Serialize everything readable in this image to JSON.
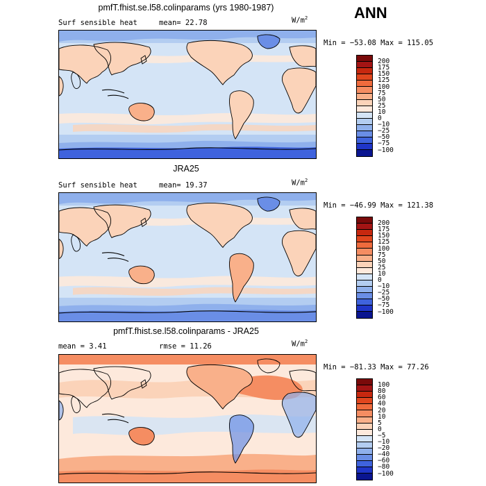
{
  "season": "ANN",
  "colors": {
    "land_outline": "#000000",
    "ocean_base": "#d2e5f6"
  },
  "panels": [
    {
      "title": "pmfT.fhist.se.l58.colinparams (yrs 1980-1987)",
      "variable": "Surf sensible heat",
      "stat_left": "mean=  22.78",
      "stat_right": "",
      "units": "W/m",
      "units_sup": "2",
      "minmax": "Min = −53.08 Max = 115.05"
    },
    {
      "title": "JRA25",
      "variable": "Surf sensible heat",
      "stat_left": "mean=  19.37",
      "stat_right": "",
      "units": "W/m",
      "units_sup": "2",
      "minmax": "Min = −46.99 Max = 121.38"
    },
    {
      "title": "pmfT.fhist.se.l58.colinparams - JRA25",
      "variable": "",
      "stat_left": "mean =   3.41",
      "stat_right": "rmse =  11.26",
      "units": "W/m",
      "units_sup": "2",
      "minmax": "Min = −81.33 Max =  77.26"
    }
  ],
  "chart_data": [
    {
      "type": "heatmap",
      "title": "pmfT.fhist.se.l58.colinparams (yrs 1980-1987)",
      "variable": "Surf sensible heat",
      "units": "W/m2",
      "mean": 22.78,
      "min": -53.08,
      "max": 115.05,
      "colorbar_levels": [
        200,
        175,
        150,
        125,
        100,
        75,
        50,
        25,
        10,
        0,
        -10,
        -25,
        -50,
        -75,
        -100
      ],
      "colorbar_colors": [
        "#7a0a0a",
        "#a31414",
        "#c7280f",
        "#e0461e",
        "#ef6b3d",
        "#f58d62",
        "#f9b08a",
        "#fbd3b9",
        "#fde9dc",
        "#d4e4f6",
        "#b3cdf1",
        "#8fb0ec",
        "#6a8ee6",
        "#3f63dd",
        "#1f35c8",
        "#0a1590"
      ]
    },
    {
      "type": "heatmap",
      "title": "JRA25",
      "variable": "Surf sensible heat",
      "units": "W/m2",
      "mean": 19.37,
      "min": -46.99,
      "max": 121.38,
      "colorbar_levels": [
        200,
        175,
        150,
        125,
        100,
        75,
        50,
        25,
        10,
        0,
        -10,
        -25,
        -50,
        -75,
        -100
      ],
      "colorbar_colors": [
        "#7a0a0a",
        "#a31414",
        "#c7280f",
        "#e0461e",
        "#ef6b3d",
        "#f58d62",
        "#f9b08a",
        "#fbd3b9",
        "#fde9dc",
        "#d4e4f6",
        "#b3cdf1",
        "#8fb0ec",
        "#6a8ee6",
        "#3f63dd",
        "#1f35c8",
        "#0a1590"
      ]
    },
    {
      "type": "heatmap",
      "title": "pmfT.fhist.se.l58.colinparams - JRA25",
      "units": "W/m2",
      "mean": 3.41,
      "rmse": 11.26,
      "min": -81.33,
      "max": 77.26,
      "colorbar_levels": [
        100,
        80,
        60,
        40,
        20,
        10,
        5,
        0,
        -5,
        -10,
        -20,
        -40,
        -60,
        -80,
        -100
      ],
      "colorbar_colors": [
        "#7a0a0a",
        "#a31414",
        "#c7280f",
        "#e0461e",
        "#ef6b3d",
        "#f58d62",
        "#f9b08a",
        "#fbd3b9",
        "#fde9dc",
        "#d4e4f6",
        "#b3cdf1",
        "#8fb0ec",
        "#6a8ee6",
        "#3f63dd",
        "#1f35c8",
        "#0a1590"
      ]
    }
  ]
}
